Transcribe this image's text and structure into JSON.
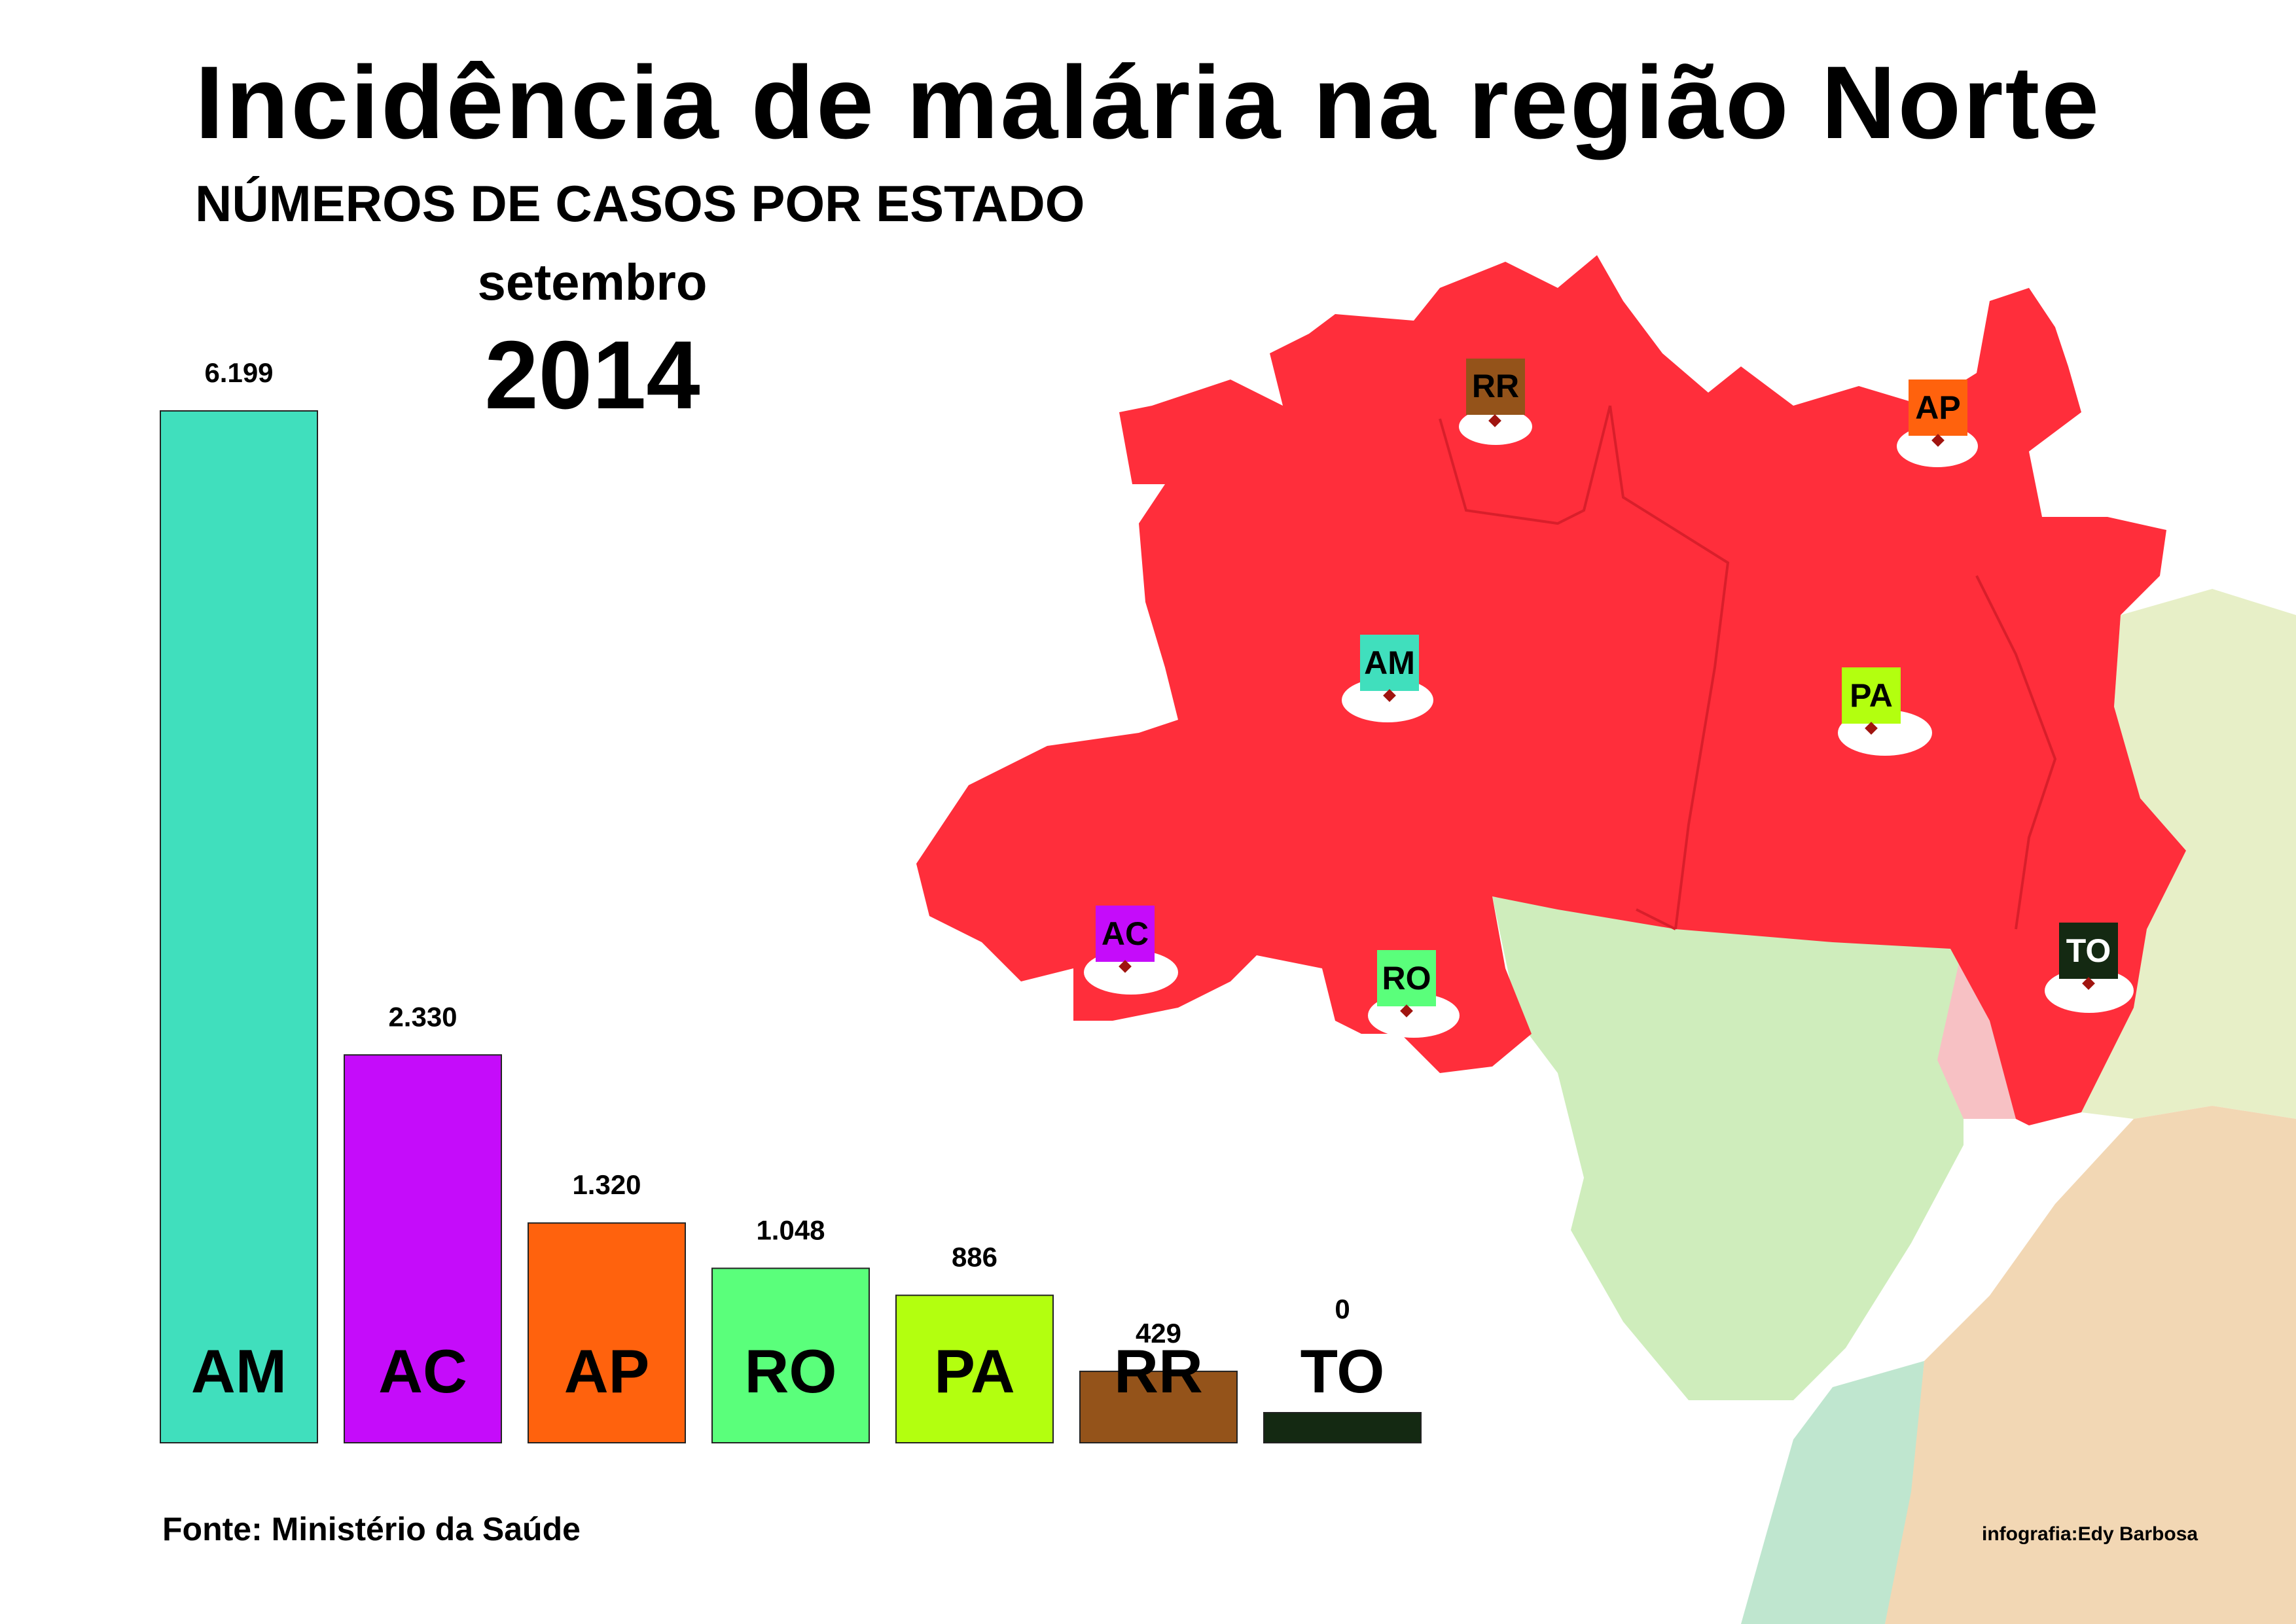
{
  "title": "Incidência de malária na região Norte",
  "subtitle": "NÚMEROS DE CASOS POR ESTADO",
  "period": {
    "month": "setembro",
    "year": "2014"
  },
  "source": "Fonte: Ministério da Saúde",
  "credit": "infografia:Edy Barbosa",
  "chart_data": {
    "type": "bar",
    "categories": [
      "AM",
      "AC",
      "AP",
      "RO",
      "PA",
      "RR",
      "TO"
    ],
    "values": [
      6199,
      2330,
      1320,
      1048,
      886,
      429,
      0
    ],
    "value_labels": [
      "6.199",
      "2.330",
      "1.320",
      "1.048",
      "886",
      "429",
      "0"
    ],
    "colors": [
      "#40dfbd",
      "#c50cfa",
      "#ff620d",
      "#5aff7b",
      "#b3ff0f",
      "#94531a",
      "#142912"
    ],
    "ylim": [
      0,
      6199
    ],
    "grid": false,
    "legend": "none"
  },
  "map": {
    "region_color": "#ff2e3b",
    "states": [
      {
        "code": "RR",
        "color": "#94531a"
      },
      {
        "code": "AP",
        "color": "#ff620d"
      },
      {
        "code": "AM",
        "color": "#40dfbd"
      },
      {
        "code": "PA",
        "color": "#b3ff0f"
      },
      {
        "code": "AC",
        "color": "#c50cfa"
      },
      {
        "code": "RO",
        "color": "#5aff7b"
      },
      {
        "code": "TO",
        "color": "#142912",
        "text_color": "#ffffff"
      }
    ]
  }
}
